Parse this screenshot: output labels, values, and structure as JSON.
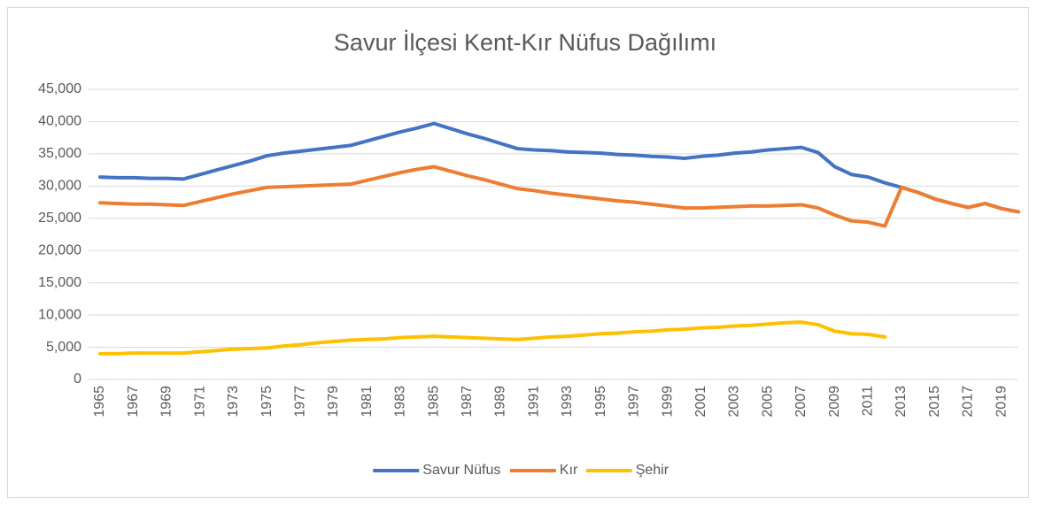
{
  "chart_data": {
    "type": "line",
    "title": "Savur İlçesi Kent-Kır Nüfus Dağılımı",
    "categories": [
      "1965",
      null,
      "1967",
      null,
      "1969",
      null,
      "1971",
      null,
      "1973",
      null,
      "1975",
      null,
      "1977",
      null,
      "1979",
      null,
      "1981",
      null,
      "1983",
      null,
      "1985",
      null,
      "1987",
      null,
      "1989",
      null,
      "1991",
      null,
      "1993",
      null,
      "1995",
      null,
      "1997",
      null,
      "1999",
      null,
      "2001",
      null,
      "2003",
      null,
      "2005",
      null,
      "2007",
      null,
      "2009",
      null,
      "2011",
      null,
      "2013",
      null,
      "2015",
      null,
      "2017",
      null,
      "2019",
      null
    ],
    "series": [
      {
        "name": "Savur Nüfus",
        "color": "#4472c4",
        "values": [
          31400,
          31300,
          31300,
          31200,
          31200,
          31100,
          31800,
          32500,
          33200,
          33900,
          34700,
          35100,
          35400,
          35700,
          36000,
          36300,
          37000,
          37700,
          38400,
          39000,
          39700,
          38900,
          38100,
          37400,
          36600,
          35800,
          35600,
          35500,
          35300,
          35200,
          35100,
          34900,
          34800,
          34600,
          34500,
          34300,
          34600,
          34800,
          35100,
          35300,
          35600,
          35800,
          36000,
          35200,
          33000,
          31800,
          31400,
          30500,
          29800,
          29000,
          28000,
          27300,
          26700,
          27300,
          26500,
          26000
        ]
      },
      {
        "name": "Kır",
        "color": "#ed7d31",
        "values": [
          27400,
          27300,
          27200,
          27200,
          27100,
          27000,
          27600,
          28200,
          28800,
          29300,
          29800,
          29900,
          30000,
          30100,
          30200,
          30300,
          30900,
          31500,
          32100,
          32600,
          33000,
          32300,
          31600,
          31000,
          30300,
          29600,
          29300,
          28900,
          28600,
          28300,
          28000,
          27700,
          27500,
          27200,
          26900,
          26600,
          26600,
          26700,
          26800,
          26900,
          26900,
          27000,
          27100,
          26600,
          25500,
          24600,
          24400,
          23800,
          29800,
          29000,
          28000,
          27300,
          26700,
          27300,
          26500,
          26000
        ]
      },
      {
        "name": "Şehir",
        "color": "#ffc000",
        "values": [
          4000,
          4000,
          4100,
          4100,
          4100,
          4100,
          4300,
          4500,
          4700,
          4800,
          4900,
          5200,
          5400,
          5700,
          5900,
          6100,
          6200,
          6300,
          6500,
          6600,
          6700,
          6600,
          6500,
          6400,
          6300,
          6200,
          6400,
          6600,
          6700,
          6900,
          7100,
          7200,
          7400,
          7500,
          7700,
          7800,
          8000,
          8100,
          8300,
          8400,
          8600,
          8800,
          8900,
          8500,
          7500,
          7100,
          7000,
          6600,
          null,
          null,
          null,
          null,
          null,
          null,
          null,
          null
        ]
      }
    ],
    "ylim": [
      0,
      45000
    ],
    "yticks": [
      0,
      {
        "value": 5000,
        "label": "5,000"
      },
      {
        "value": 10000,
        "label": "10,000"
      },
      {
        "value": 15000,
        "label": "15,000"
      },
      {
        "value": 20000,
        "label": "20,000"
      },
      {
        "value": 25000,
        "label": "25,000"
      },
      {
        "value": 30000,
        "label": "30,000"
      },
      {
        "value": 35000,
        "label": "35,000"
      },
      {
        "value": 40000,
        "label": "40,000"
      },
      {
        "value": 45000,
        "label": "45,000"
      }
    ],
    "grid": true,
    "legend": "bottom"
  }
}
